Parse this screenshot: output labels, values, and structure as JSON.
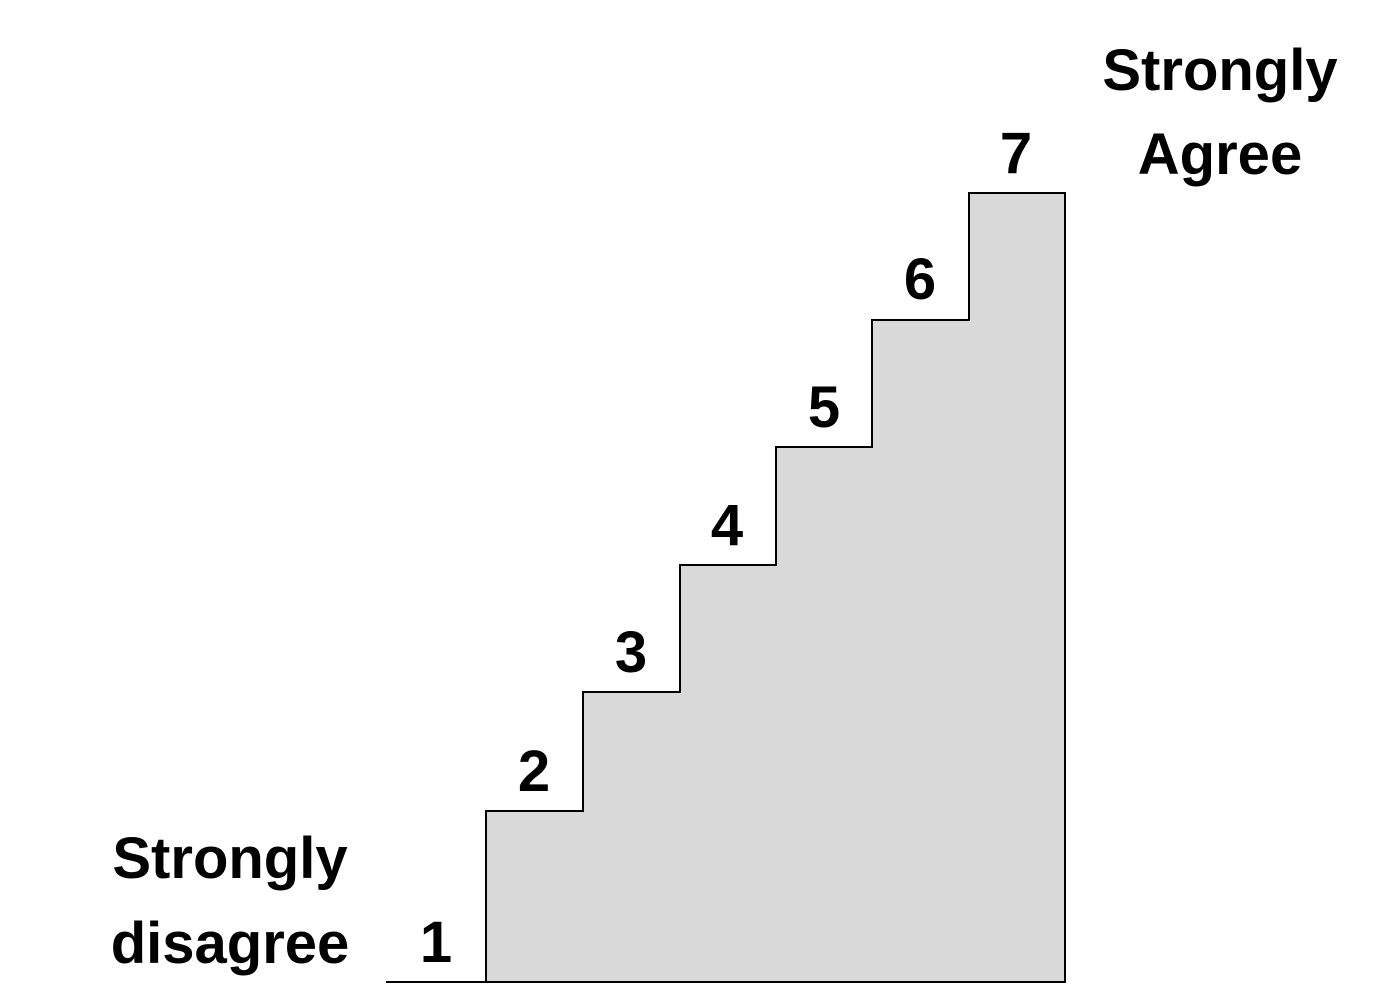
{
  "scale": {
    "low_anchor": {
      "line1": "Strongly",
      "line2": "disagree"
    },
    "high_anchor": {
      "line1": "Strongly",
      "line2": "Agree"
    },
    "steps": [
      "1",
      "2",
      "3",
      "4",
      "5",
      "6",
      "7"
    ]
  },
  "colors": {
    "step_fill": "#d9d9d9",
    "stroke": "#000000",
    "text": "#000000",
    "background": "#ffffff"
  }
}
